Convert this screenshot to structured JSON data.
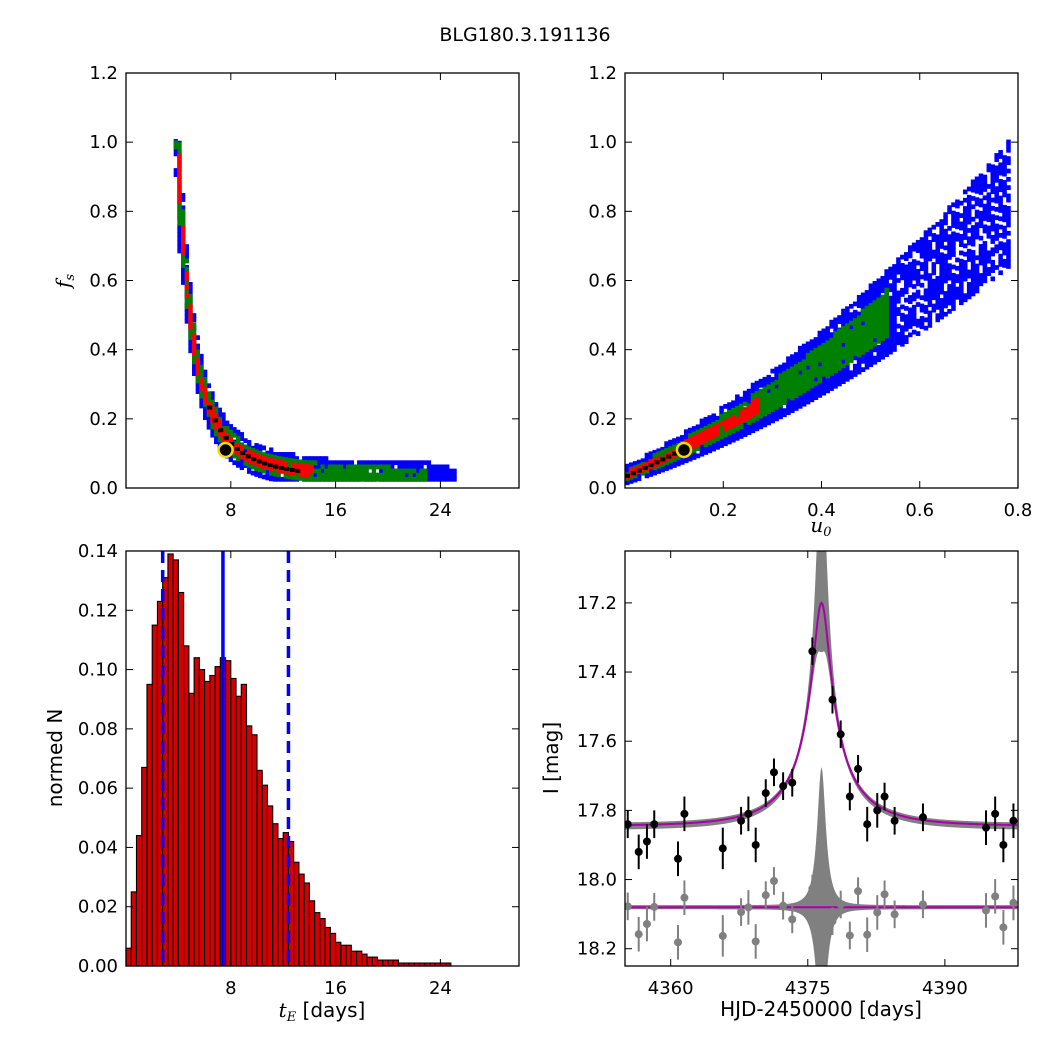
{
  "figure": {
    "title": "BLG180.3.191136"
  },
  "colors": {
    "sigma3": "#0000ff",
    "sigma2": "#008000",
    "sigma1": "#ff0000",
    "best": "#000000",
    "marker_edge": "#ffd700",
    "hist_fill": "#d40000",
    "median_line": "#0000ff",
    "model_line": "#aa00aa",
    "model_band": "#808080",
    "data_points": "#000000",
    "residual_points": "#808080"
  },
  "panels": {
    "top_left": {
      "xlabel": "",
      "ylabel_main": "f",
      "ylabel_sub": "s",
      "xlim": [
        0,
        30
      ],
      "ylim": [
        0,
        1.2
      ],
      "xticks": [
        "8",
        "16",
        "24"
      ],
      "yticks": [
        "0.0",
        "0.2",
        "0.4",
        "0.6",
        "0.8",
        "1.0",
        "1.2"
      ]
    },
    "top_right": {
      "xlabel_main": "u",
      "xlabel_sub": "0",
      "ylabel": "",
      "xlim": [
        0,
        0.8
      ],
      "ylim": [
        0,
        1.2
      ],
      "xticks": [
        "0.2",
        "0.4",
        "0.6",
        "0.8"
      ],
      "yticks": [
        "0.0",
        "0.2",
        "0.4",
        "0.6",
        "0.8",
        "1.0",
        "1.2"
      ]
    },
    "bottom_left": {
      "xlabel_main": "t",
      "xlabel_sub": "E",
      "xlabel_suffix": " [days]",
      "ylabel": "normed N",
      "xlim": [
        0,
        30
      ],
      "ylim": [
        0,
        0.14
      ],
      "xticks": [
        "8",
        "16",
        "24"
      ],
      "yticks": [
        "0.00",
        "0.02",
        "0.04",
        "0.06",
        "0.08",
        "0.10",
        "0.12",
        "0.14"
      ]
    },
    "bottom_right": {
      "xlabel": "HJD-2450000 [days]",
      "ylabel": "I [mag]",
      "xlim": [
        4355,
        4398
      ],
      "ylim": [
        18.25,
        17.05
      ],
      "xticks": [
        "4360",
        "4375",
        "4390"
      ],
      "yticks": [
        "17.2",
        "17.4",
        "17.6",
        "17.8",
        "18.0",
        "18.2"
      ]
    }
  },
  "chart_data": [
    {
      "type": "heatmap",
      "panel": "top_left",
      "description_free": true,
      "relation": "fs = 0.024 + 0.96*(3/(tE-0.8))^2.6",
      "tE_range": [
        2.8,
        25.2
      ],
      "best_fit": {
        "tE": 7.6,
        "fs": 0.11
      }
    },
    {
      "type": "heatmap",
      "panel": "top_right",
      "relation": "fs = 0.035 + 0.62*u0 + 0.5*u0^2 (spread widens with u0)",
      "u0_range": [
        0.0,
        0.78
      ],
      "best_fit": {
        "u0": 0.12,
        "fs": 0.11
      }
    },
    {
      "type": "bar",
      "panel": "bottom_left",
      "bin_start": 0,
      "bin_width": 0.4,
      "values": [
        0.006,
        0.025,
        0.044,
        0.067,
        0.095,
        0.115,
        0.123,
        0.131,
        0.139,
        0.137,
        0.126,
        0.108,
        0.092,
        0.104,
        0.1,
        0.096,
        0.098,
        0.101,
        0.104,
        0.103,
        0.097,
        0.091,
        0.095,
        0.081,
        0.078,
        0.066,
        0.061,
        0.054,
        0.048,
        0.043,
        0.045,
        0.042,
        0.035,
        0.031,
        0.028,
        0.022,
        0.018,
        0.016,
        0.013,
        0.011,
        0.008,
        0.007,
        0.007,
        0.005,
        0.005,
        0.004,
        0.003,
        0.003,
        0.002,
        0.002,
        0.002,
        0.002,
        0.001,
        0.001,
        0.001,
        0.001,
        0.001,
        0.001,
        0.001,
        0.001,
        0.001,
        0.001
      ],
      "median": 7.4,
      "lower_bound": 2.8,
      "upper_bound": 12.4
    },
    {
      "type": "line",
      "panel": "bottom_right",
      "model": {
        "t0": 4376.5,
        "tE": 7.6,
        "u0": 0.12,
        "fs": 0.11,
        "baseline": 17.845,
        "band_u0": 0.06
      },
      "residual_offset": 18.08,
      "points": [
        {
          "t": 4355.3,
          "mag": 17.84,
          "err": 0.04
        },
        {
          "t": 4356.5,
          "mag": 17.92,
          "err": 0.05
        },
        {
          "t": 4357.4,
          "mag": 17.89,
          "err": 0.05
        },
        {
          "t": 4358.2,
          "mag": 17.84,
          "err": 0.04
        },
        {
          "t": 4360.8,
          "mag": 17.94,
          "err": 0.05
        },
        {
          "t": 4361.5,
          "mag": 17.81,
          "err": 0.05
        },
        {
          "t": 4365.7,
          "mag": 17.91,
          "err": 0.06
        },
        {
          "t": 4367.7,
          "mag": 17.83,
          "err": 0.04
        },
        {
          "t": 4368.5,
          "mag": 17.81,
          "err": 0.05
        },
        {
          "t": 4369.3,
          "mag": 17.9,
          "err": 0.05
        },
        {
          "t": 4370.4,
          "mag": 17.75,
          "err": 0.04
        },
        {
          "t": 4371.3,
          "mag": 17.69,
          "err": 0.04
        },
        {
          "t": 4372.3,
          "mag": 17.73,
          "err": 0.04
        },
        {
          "t": 4373.3,
          "mag": 17.72,
          "err": 0.04
        },
        {
          "t": 4375.5,
          "mag": 17.34,
          "err": 0.04
        },
        {
          "t": 4377.7,
          "mag": 17.48,
          "err": 0.04
        },
        {
          "t": 4378.6,
          "mag": 17.58,
          "err": 0.04
        },
        {
          "t": 4379.6,
          "mag": 17.76,
          "err": 0.04
        },
        {
          "t": 4380.5,
          "mag": 17.68,
          "err": 0.04
        },
        {
          "t": 4381.5,
          "mag": 17.84,
          "err": 0.05
        },
        {
          "t": 4382.6,
          "mag": 17.8,
          "err": 0.05
        },
        {
          "t": 4383.4,
          "mag": 17.76,
          "err": 0.04
        },
        {
          "t": 4384.5,
          "mag": 17.83,
          "err": 0.04
        },
        {
          "t": 4387.6,
          "mag": 17.82,
          "err": 0.04
        },
        {
          "t": 4394.5,
          "mag": 17.85,
          "err": 0.05
        },
        {
          "t": 4395.5,
          "mag": 17.81,
          "err": 0.05
        },
        {
          "t": 4396.4,
          "mag": 17.9,
          "err": 0.05
        },
        {
          "t": 4397.5,
          "mag": 17.83,
          "err": 0.05
        }
      ]
    }
  ]
}
